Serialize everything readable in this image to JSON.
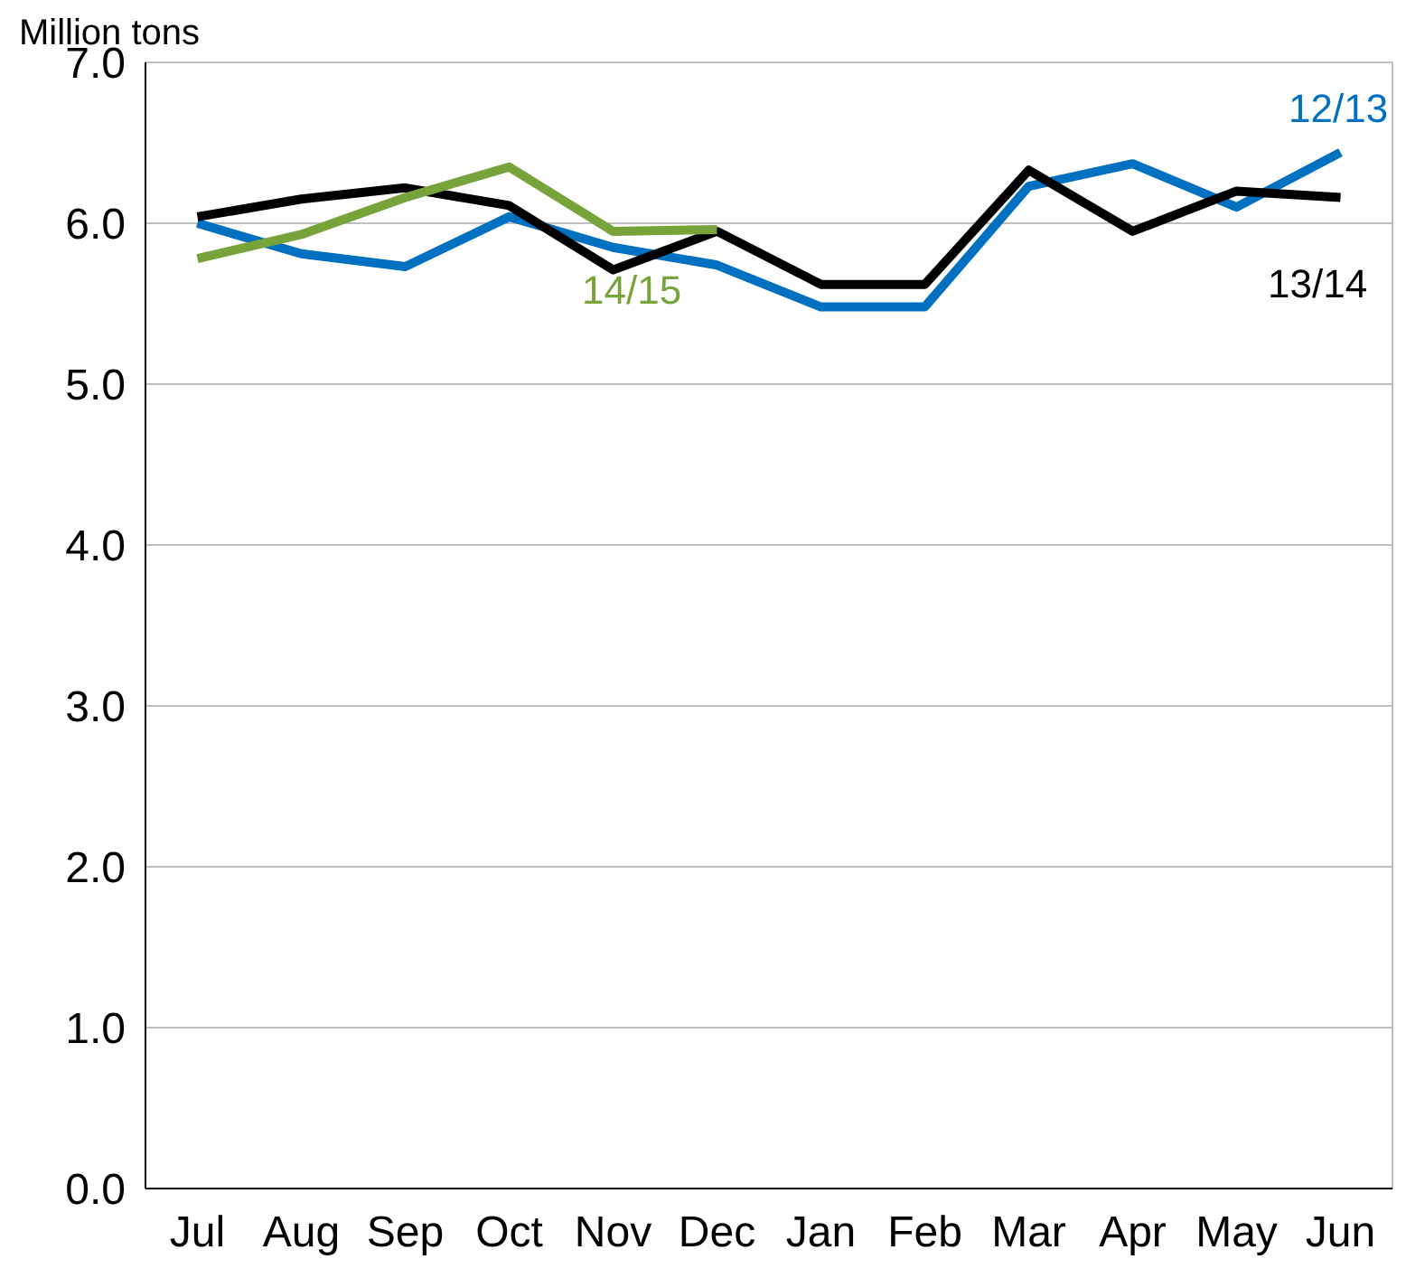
{
  "chart_data": {
    "type": "line",
    "ylabel": "Million tons",
    "categories": [
      "Jul",
      "Aug",
      "Sep",
      "Oct",
      "Nov",
      "Dec",
      "Jan",
      "Feb",
      "Mar",
      "Apr",
      "May",
      "Jun"
    ],
    "series": [
      {
        "name": "12/13",
        "color": "#0070c0",
        "values": [
          6.0,
          5.81,
          5.73,
          6.04,
          5.85,
          5.74,
          5.48,
          5.48,
          6.23,
          6.37,
          6.1,
          6.44
        ]
      },
      {
        "name": "13/14",
        "color": "#000000",
        "values": [
          6.04,
          6.15,
          6.22,
          6.11,
          5.71,
          5.95,
          5.62,
          5.62,
          6.33,
          5.95,
          6.2,
          6.16
        ]
      },
      {
        "name": "14/15",
        "color": "#77a33a",
        "values": [
          5.78,
          5.93,
          6.16,
          6.35,
          5.95,
          5.96,
          null,
          null,
          null,
          null,
          null,
          null
        ]
      }
    ],
    "ylim": [
      0,
      7
    ],
    "yticks": [
      {
        "value": 0,
        "label": "0.0"
      },
      {
        "value": 1,
        "label": "1.0"
      },
      {
        "value": 2,
        "label": "2.0"
      },
      {
        "value": 3,
        "label": "3.0"
      },
      {
        "value": 4,
        "label": "4.0"
      },
      {
        "value": 5,
        "label": "5.0"
      },
      {
        "value": 6,
        "label": "6.0"
      },
      {
        "value": 7,
        "label": "7.0"
      }
    ],
    "grid": "y",
    "legend": false,
    "marker": "none",
    "line_style": "solid"
  }
}
